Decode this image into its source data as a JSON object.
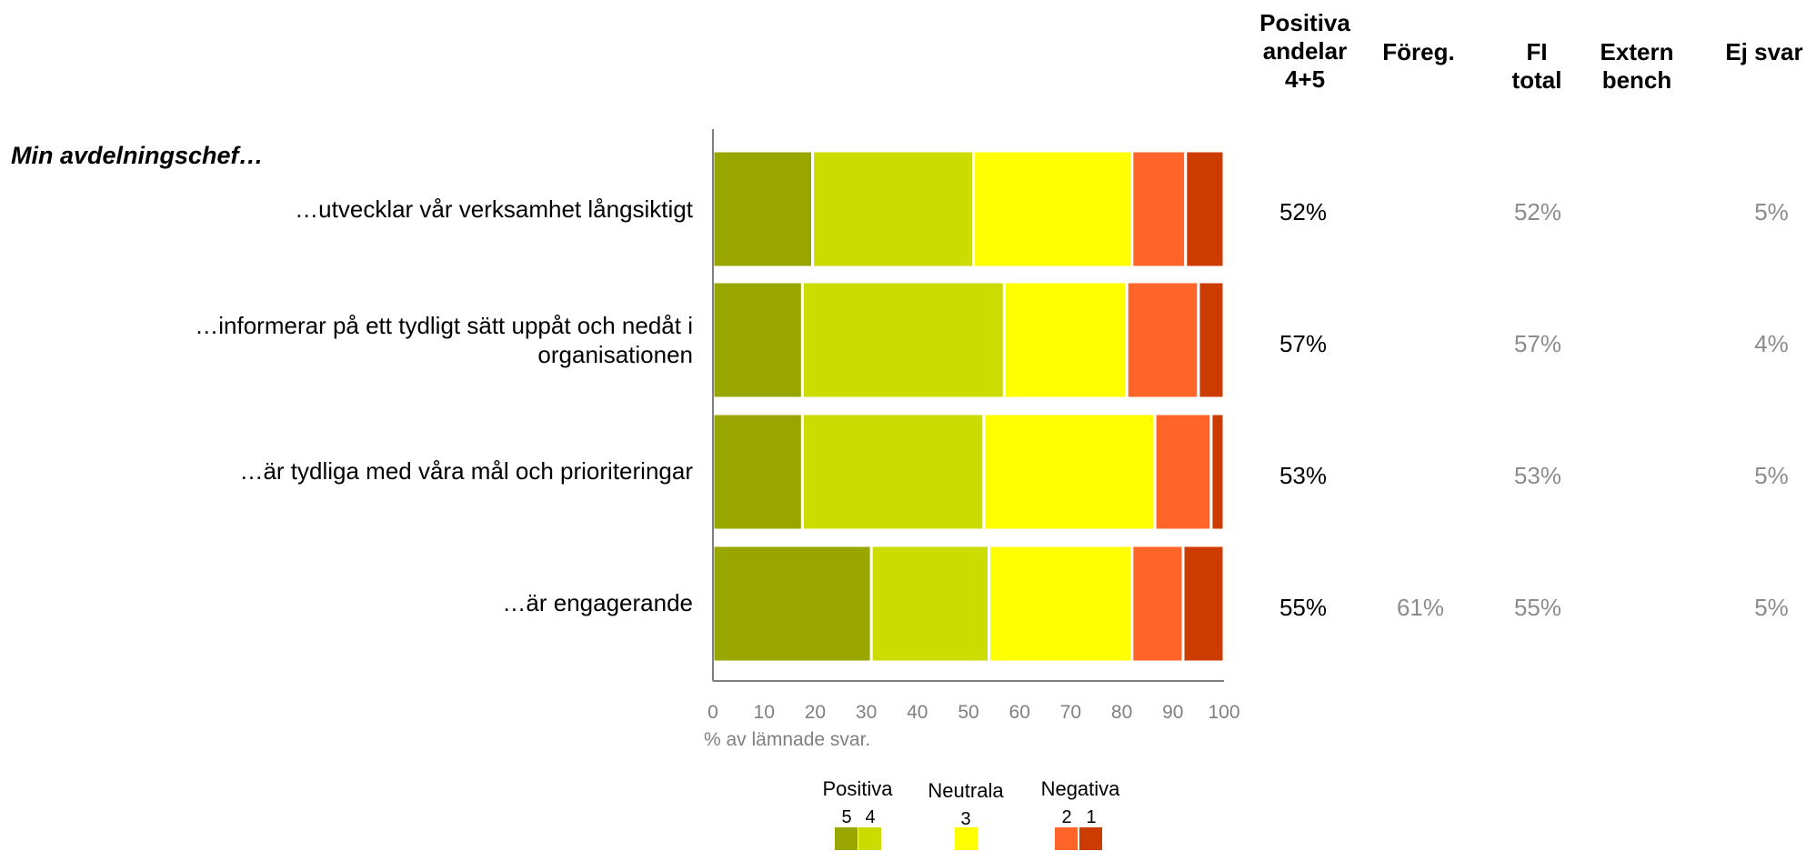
{
  "headers": {
    "positiva": "Positiva\nandelar\n4+5",
    "foreg": "Föreg.",
    "fi_total": "FI\ntotal",
    "extern": "Extern\nbench",
    "ej_svar": "Ej svar"
  },
  "section_title": "Min avdelningschef…",
  "rows": [
    {
      "label": "…utvecklar vår verksamhet långsiktigt",
      "positiva": "52%",
      "foreg": "",
      "fi_total": "52%",
      "extern": "",
      "ej_svar": "5%"
    },
    {
      "label": "…informerar på ett tydligt sätt uppåt och nedåt i\norganisationen",
      "positiva": "57%",
      "foreg": "",
      "fi_total": "57%",
      "extern": "",
      "ej_svar": "4%"
    },
    {
      "label": "…är tydliga med våra mål och prioriteringar",
      "positiva": "53%",
      "foreg": "",
      "fi_total": "53%",
      "extern": "",
      "ej_svar": "5%"
    },
    {
      "label": "…är engagerande",
      "positiva": "55%",
      "foreg": "61%",
      "fi_total": "55%",
      "extern": "",
      "ej_svar": "5%"
    }
  ],
  "chart_data": {
    "type": "bar",
    "orientation": "horizontal",
    "stacked": true,
    "categories": [
      "…utvecklar vår verksamhet långsiktigt",
      "…informerar på ett tydligt sätt uppåt och nedåt i organisationen",
      "…är tydliga med våra mål och prioriteringar",
      "…är engagerande"
    ],
    "series": [
      {
        "name": "5",
        "color": "#99a600",
        "values": [
          19.5,
          17.5,
          17.5,
          31
        ]
      },
      {
        "name": "4",
        "color": "#ccdb00",
        "values": [
          31.5,
          39.5,
          35.5,
          23
        ]
      },
      {
        "name": "3",
        "color": "#ffff00",
        "values": [
          31,
          24,
          33.5,
          28
        ]
      },
      {
        "name": "2",
        "color": "#ff6428",
        "values": [
          10.5,
          14,
          11,
          10
        ]
      },
      {
        "name": "1",
        "color": "#cc3c00",
        "values": [
          7.5,
          5,
          2.5,
          8
        ]
      }
    ],
    "xlim": [
      0,
      100
    ],
    "xticks": [
      "0",
      "10",
      "20",
      "30",
      "40",
      "50",
      "60",
      "70",
      "80",
      "90",
      "100"
    ],
    "xlabel": "% av lämnade svar.",
    "grid": false,
    "legend": {
      "placement": "bottom",
      "groups": [
        {
          "title": "Positiva",
          "items": [
            "5",
            "4"
          ]
        },
        {
          "title": "Neutrala",
          "items": [
            "3"
          ]
        },
        {
          "title": "Negativa",
          "items": [
            "2",
            "1"
          ]
        }
      ]
    }
  }
}
